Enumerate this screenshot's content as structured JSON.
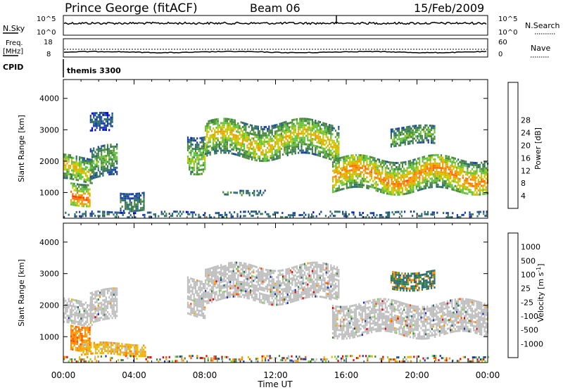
{
  "header": {
    "station": "Prince George (fitACF)",
    "beam": "Beam 06",
    "date": "15/Feb/2009"
  },
  "panels": {
    "nsky": {
      "label": "N.Sky",
      "right_label": "N.Search",
      "ticks_left": [
        "10^5",
        "10^0"
      ],
      "ticks_right": [
        "10^5",
        "10^0"
      ]
    },
    "freq": {
      "label_top": "Freq.",
      "label_bottom": "[MHz]",
      "right_label": "Nave",
      "ticks_left": [
        "18",
        "8"
      ],
      "ticks_right": [
        "60",
        "0"
      ]
    },
    "cpid": {
      "label": "CPID",
      "value": "themis 3300"
    }
  },
  "colors": {
    "power": [
      "#0000e6",
      "#1a3fa8",
      "#2d6d6d",
      "#4a8a3a",
      "#64c23c",
      "#c8c800",
      "#f0a000",
      "#ff7000",
      "#ff3a00",
      "#e60000"
    ],
    "velocity": [
      "#1e32b4",
      "#2a6a6a",
      "#3c8c3c",
      "#78d23c",
      "#bfbfbf",
      "#f0b400",
      "#ff8c00",
      "#ff5000",
      "#e60000"
    ]
  },
  "chart_data": [
    {
      "type": "heatmap",
      "quantity": "power",
      "ylabel": "Slant Range [km]",
      "yticks": [
        "1000",
        "2000",
        "3000",
        "4000"
      ],
      "xticks": [
        "00:00",
        "04:00",
        "08:00",
        "12:00",
        "16:00",
        "20:00",
        "00:00"
      ],
      "xlim": [
        0,
        24
      ],
      "ylim": [
        180,
        4600
      ],
      "colorbar": {
        "label": "Power [dB]",
        "ticks": [
          "4",
          "8",
          "12",
          "16",
          "20",
          "24",
          "28"
        ]
      },
      "echo_regions": [
        {
          "t0": 0.0,
          "t1": 1.6,
          "r0": 1350,
          "r1": 2150,
          "p": 20
        },
        {
          "t0": 0.4,
          "t1": 1.5,
          "r0": 650,
          "r1": 1350,
          "p": 27
        },
        {
          "t0": 1.5,
          "t1": 3.0,
          "r0": 1500,
          "r1": 2450,
          "p": 14
        },
        {
          "t0": 1.5,
          "t1": 2.8,
          "r0": 2900,
          "r1": 3500,
          "p": 6
        },
        {
          "t0": 3.2,
          "t1": 4.6,
          "r0": 450,
          "r1": 1050,
          "p": 10
        },
        {
          "t0": 7.0,
          "t1": 8.0,
          "r0": 1700,
          "r1": 2900,
          "p": 16
        },
        {
          "t0": 8.0,
          "t1": 15.6,
          "r0": 2150,
          "r1": 3250,
          "p": 20
        },
        {
          "t0": 9.0,
          "t1": 11.5,
          "r0": 950,
          "r1": 1100,
          "p": 10
        },
        {
          "t0": 15.2,
          "t1": 24.0,
          "r0": 1050,
          "r1": 2100,
          "p": 24
        },
        {
          "t0": 18.5,
          "t1": 21.0,
          "r0": 2500,
          "r1": 3100,
          "p": 14
        },
        {
          "t0": 0.0,
          "t1": 24.0,
          "r0": 200,
          "r1": 400,
          "p": 8
        }
      ]
    },
    {
      "type": "heatmap",
      "quantity": "velocity",
      "ylabel": "Slant Range [km]",
      "yticks": [
        "1000",
        "2000",
        "3000",
        "4000"
      ],
      "xticks": [
        "00:00",
        "04:00",
        "08:00",
        "12:00",
        "16:00",
        "20:00",
        "00:00"
      ],
      "xlabel": "Time UT",
      "xlim": [
        0,
        24
      ],
      "ylim": [
        180,
        4600
      ],
      "colorbar": {
        "label": "Velocity [m s^-1]",
        "ticks": [
          "1000",
          "500",
          "100",
          "25",
          "-25",
          "-100",
          "-500",
          "-1000"
        ]
      },
      "echo_regions": [
        {
          "t0": 0.0,
          "t1": 1.6,
          "r0": 1350,
          "r1": 2150,
          "v": 0
        },
        {
          "t0": 0.4,
          "t1": 1.5,
          "r0": 650,
          "r1": 1400,
          "v": -500
        },
        {
          "t0": 1.5,
          "t1": 3.0,
          "r0": 1500,
          "r1": 2450,
          "v": 0
        },
        {
          "t0": 1.0,
          "t1": 4.6,
          "r0": 400,
          "r1": 800,
          "v": -150
        },
        {
          "t0": 7.0,
          "t1": 8.0,
          "r0": 1700,
          "r1": 2900,
          "v": 0
        },
        {
          "t0": 8.0,
          "t1": 15.6,
          "r0": 2150,
          "r1": 3250,
          "v": 0
        },
        {
          "t0": 15.2,
          "t1": 24.0,
          "r0": 1050,
          "r1": 2100,
          "v": 0
        },
        {
          "t0": 18.5,
          "t1": 21.0,
          "r0": 2500,
          "r1": 3100,
          "v": 200
        },
        {
          "t0": 0.0,
          "t1": 24.0,
          "r0": 200,
          "r1": 400,
          "v": 50
        }
      ]
    }
  ]
}
